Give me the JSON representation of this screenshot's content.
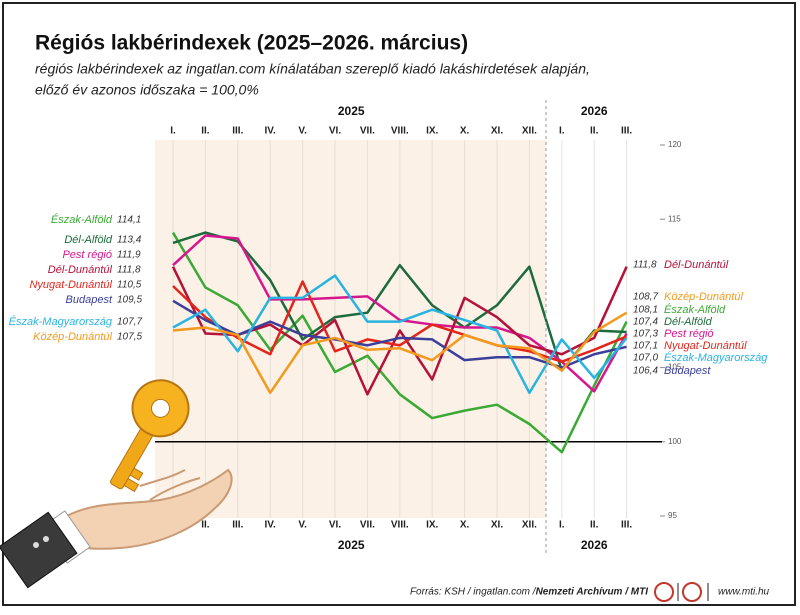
{
  "chart_data": {
    "type": "line",
    "title": "Régiós lakbérindexek (2025–2026. március)",
    "subtitle": [
      "régiós lakbérindexek az ingatlan.com kínálatában szereplő kiadó lakáshirdetések alapján,",
      "előző év azonos időszaka = 100,0%"
    ],
    "year_labels": [
      "2025",
      "2026"
    ],
    "categories": [
      "I.",
      "II.",
      "III.",
      "IV.",
      "V.",
      "VI.",
      "VII.",
      "VIII.",
      "IX.",
      "X.",
      "XI.",
      "XII.",
      "I.",
      "II.",
      "III."
    ],
    "ylim": [
      95,
      120
    ],
    "yticks": [
      95,
      100,
      105,
      115,
      120
    ],
    "reference_line": 100,
    "series": [
      {
        "name": "Észak-Alföld",
        "color": "#3aaa35",
        "values": [
          114.1,
          110.4,
          109.2,
          106.2,
          108.5,
          104.7,
          105.8,
          103.2,
          101.6,
          102.1,
          102.5,
          101.2,
          99.3,
          103.8,
          108.1
        ],
        "value_labels": [
          "114,1",
          null,
          null,
          null,
          null,
          null,
          null,
          null,
          null,
          null,
          null,
          null,
          null,
          null,
          "108,1"
        ]
      },
      {
        "name": "Dél-Alföld",
        "color": "#1d6b3c",
        "values": [
          113.4,
          114.1,
          113.5,
          110.9,
          106.9,
          108.4,
          108.7,
          111.9,
          109.2,
          107.7,
          109.2,
          111.8,
          104.8,
          107.5,
          107.4
        ],
        "value_labels": [
          "113,4",
          null,
          null,
          null,
          null,
          null,
          null,
          null,
          null,
          null,
          null,
          null,
          null,
          null,
          "107,4"
        ]
      },
      {
        "name": "Pest régió",
        "color": "#d6168f",
        "values": [
          111.9,
          113.9,
          113.7,
          109.6,
          109.6,
          109.7,
          109.8,
          108.2,
          107.9,
          107.7,
          107.7,
          107.0,
          105.4,
          103.4,
          107.3
        ],
        "value_labels": [
          "111,9",
          null,
          null,
          null,
          null,
          null,
          null,
          null,
          null,
          null,
          null,
          null,
          null,
          null,
          "107,3"
        ]
      },
      {
        "name": "Dél-Dunántúl",
        "color": "#b5123a",
        "values": [
          111.8,
          107.3,
          107.2,
          107.9,
          106.5,
          108.2,
          103.2,
          107.5,
          104.2,
          109.7,
          108.4,
          106.5,
          105.9,
          107.0,
          111.8
        ],
        "value_labels": [
          "111,8",
          null,
          null,
          null,
          null,
          null,
          null,
          null,
          null,
          null,
          null,
          null,
          null,
          null,
          "111,8"
        ]
      },
      {
        "name": "Nyugat-Dunántúl",
        "color": "#e3261c",
        "values": [
          110.5,
          108.4,
          107.0,
          105.9,
          110.8,
          106.1,
          106.9,
          106.5,
          107.9,
          107.2,
          106.5,
          106.1,
          105.4,
          106.2,
          107.1
        ],
        "value_labels": [
          "110,5",
          null,
          null,
          null,
          null,
          null,
          null,
          null,
          null,
          null,
          null,
          null,
          null,
          null,
          "107,1"
        ]
      },
      {
        "name": "Budapest",
        "color": "#3b3f9a",
        "values": [
          109.5,
          108.2,
          107.2,
          108.1,
          107.2,
          106.9,
          106.5,
          107.0,
          106.9,
          105.5,
          105.7,
          105.7,
          105.0,
          105.9,
          106.4
        ],
        "value_labels": [
          "109,5",
          null,
          null,
          null,
          null,
          null,
          null,
          null,
          null,
          null,
          null,
          null,
          null,
          null,
          "106,4"
        ]
      },
      {
        "name": "Észak-Magyarország",
        "color": "#29b3e0",
        "values": [
          107.7,
          108.9,
          106.1,
          109.7,
          109.7,
          111.2,
          108.1,
          108.1,
          108.9,
          108.2,
          107.5,
          103.3,
          106.9,
          104.3,
          107.0
        ],
        "value_labels": [
          "107,7",
          null,
          null,
          null,
          null,
          null,
          null,
          null,
          null,
          null,
          null,
          null,
          null,
          null,
          "107,0"
        ]
      },
      {
        "name": "Közép-Dunántúl",
        "color": "#f39a1e",
        "values": [
          107.5,
          107.7,
          107.2,
          103.3,
          106.5,
          107.0,
          106.2,
          106.3,
          105.5,
          107.2,
          106.5,
          106.3,
          104.8,
          107.4,
          108.7
        ],
        "value_labels": [
          "107,5",
          null,
          null,
          null,
          null,
          null,
          null,
          null,
          null,
          null,
          null,
          null,
          null,
          null,
          "108,7"
        ]
      }
    ],
    "source": [
      "Forrás: KSH / ingatlan.com / ",
      "Nemzeti Archívum / MTI"
    ],
    "website": "www.mti.hu"
  }
}
